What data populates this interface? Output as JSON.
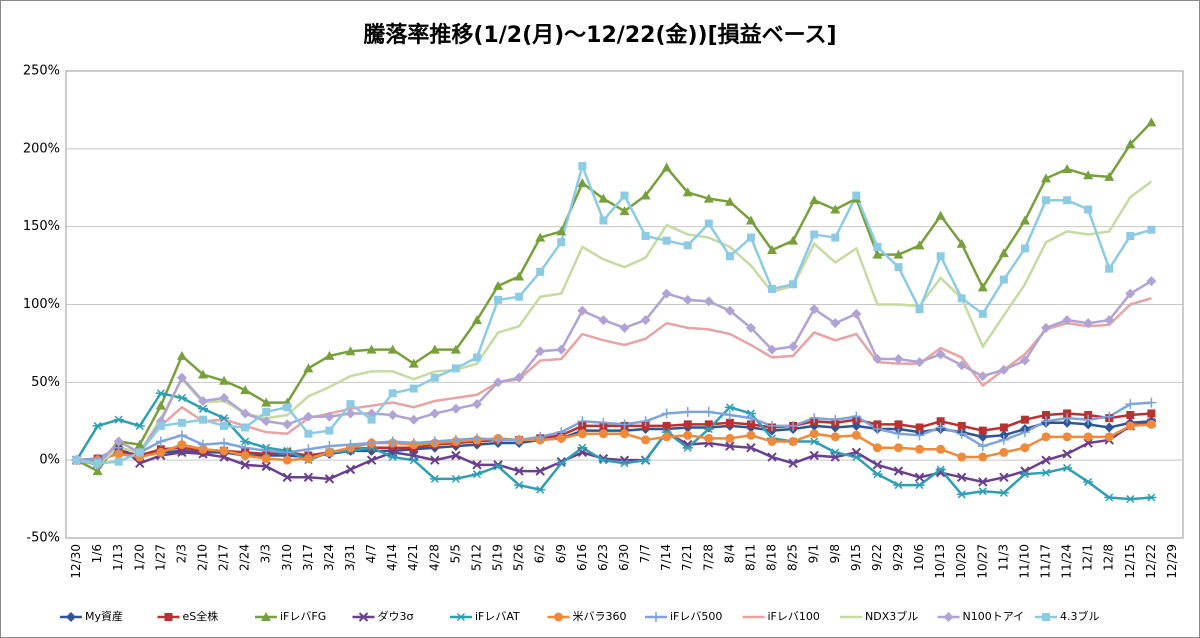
{
  "chart_data": {
    "type": "line",
    "title": "騰落率推移(1/2(月)～12/22(金))[損益ベース]",
    "categories": [
      "12/30",
      "1/6",
      "1/13",
      "1/20",
      "1/27",
      "2/3",
      "2/10",
      "2/17",
      "2/24",
      "3/3",
      "3/10",
      "3/17",
      "3/24",
      "3/31",
      "4/7",
      "4/14",
      "4/21",
      "4/28",
      "5/5",
      "5/12",
      "5/19",
      "5/26",
      "6/2",
      "6/9",
      "6/16",
      "6/23",
      "6/30",
      "7/7",
      "7/14",
      "7/21",
      "7/28",
      "8/4",
      "8/11",
      "8/18",
      "8/25",
      "9/1",
      "9/8",
      "9/15",
      "9/22",
      "9/29",
      "10/6",
      "10/13",
      "10/20",
      "10/27",
      "11/3",
      "11/10",
      "11/17",
      "11/24",
      "12/1",
      "12/8",
      "12/15",
      "12/22",
      "12/29"
    ],
    "ylim": [
      -50,
      250
    ],
    "yticks": [
      {
        "value": -50,
        "label": "-50%"
      },
      {
        "value": 0,
        "label": "0%"
      },
      {
        "value": 50,
        "label": "50%"
      },
      {
        "value": 100,
        "label": "100%"
      },
      {
        "value": 150,
        "label": "150%"
      },
      {
        "value": 200,
        "label": "200%"
      },
      {
        "value": 250,
        "label": "250%"
      }
    ],
    "grid": true,
    "legend": "bottom",
    "series": [
      {
        "name": "My資産",
        "color": "#2f5597",
        "marker": "diamond",
        "values": [
          0,
          0,
          5,
          3,
          5,
          6,
          5,
          5,
          3,
          3,
          3,
          2,
          4,
          6,
          6,
          6,
          7,
          8,
          9,
          10,
          11,
          11,
          13,
          14,
          19,
          19,
          19,
          20,
          20,
          21,
          21,
          22,
          21,
          19,
          20,
          22,
          21,
          22,
          20,
          20,
          18,
          20,
          18,
          15,
          16,
          20,
          24,
          24,
          23,
          21,
          24,
          25,
          null
        ]
      },
      {
        "name": "eS全株",
        "color": "#b83232",
        "marker": "square",
        "values": [
          0,
          1,
          6,
          3,
          7,
          8,
          6,
          6,
          5,
          4,
          5,
          3,
          5,
          7,
          8,
          8,
          8,
          10,
          11,
          12,
          13,
          13,
          14,
          16,
          22,
          22,
          22,
          22,
          22,
          23,
          23,
          24,
          23,
          21,
          22,
          25,
          24,
          26,
          23,
          23,
          21,
          25,
          22,
          19,
          21,
          26,
          29,
          30,
          29,
          27,
          29,
          30,
          null
        ]
      },
      {
        "name": "iFレバFG",
        "color": "#77a03c",
        "marker": "triangle",
        "values": [
          0,
          -7,
          12,
          10,
          35,
          67,
          55,
          51,
          45,
          37,
          37,
          59,
          67,
          70,
          71,
          71,
          62,
          71,
          71,
          90,
          112,
          118,
          143,
          147,
          178,
          168,
          160,
          170,
          188,
          172,
          168,
          166,
          154,
          135,
          141,
          167,
          161,
          168,
          132,
          132,
          138,
          157,
          139,
          111,
          133,
          154,
          181,
          187,
          183,
          182,
          203,
          217,
          null
        ]
      },
      {
        "name": "ダウ3σ",
        "color": "#6a3f8e",
        "marker": "x",
        "values": [
          0,
          -2,
          10,
          -2,
          3,
          5,
          4,
          2,
          -3,
          -4,
          -11,
          -11,
          -12,
          -6,
          0,
          5,
          3,
          0,
          3,
          -3,
          -3,
          -7,
          -7,
          -1,
          5,
          1,
          0,
          0,
          18,
          10,
          11,
          9,
          8,
          2,
          -2,
          3,
          2,
          5,
          -3,
          -7,
          -11,
          -8,
          -11,
          -14,
          -11,
          -7,
          0,
          4,
          11,
          13,
          22,
          24,
          null
        ]
      },
      {
        "name": "iFレバAT",
        "color": "#2f9fb3",
        "marker": "star",
        "values": [
          0,
          22,
          26,
          22,
          43,
          40,
          33,
          27,
          12,
          8,
          6,
          0,
          5,
          6,
          8,
          2,
          0,
          -12,
          -12,
          -9,
          -4,
          -16,
          -19,
          -2,
          8,
          0,
          -2,
          0,
          18,
          8,
          20,
          34,
          30,
          14,
          12,
          12,
          5,
          2,
          -9,
          -16,
          -16,
          -6,
          -22,
          -20,
          -21,
          -9,
          -8,
          -5,
          -14,
          -24,
          -25,
          -24,
          null
        ]
      },
      {
        "name": "米バラ360",
        "color": "#f0893a",
        "marker": "circle",
        "values": [
          0,
          0,
          4,
          2,
          5,
          10,
          7,
          6,
          3,
          1,
          0,
          1,
          5,
          8,
          11,
          11,
          10,
          11,
          12,
          13,
          14,
          13,
          13,
          14,
          17,
          17,
          17,
          13,
          15,
          16,
          14,
          14,
          16,
          12,
          12,
          17,
          15,
          16,
          8,
          8,
          7,
          7,
          2,
          2,
          5,
          8,
          15,
          15,
          15,
          15,
          22,
          23,
          null
        ]
      },
      {
        "name": "iFレバ500",
        "color": "#7fa4dc",
        "marker": "plus",
        "values": [
          0,
          1,
          8,
          5,
          12,
          16,
          10,
          11,
          8,
          6,
          5,
          7,
          9,
          10,
          11,
          12,
          11,
          12,
          13,
          14,
          13,
          13,
          15,
          18,
          25,
          24,
          23,
          25,
          30,
          31,
          31,
          29,
          27,
          22,
          22,
          27,
          26,
          28,
          20,
          17,
          16,
          21,
          17,
          9,
          13,
          18,
          25,
          27,
          26,
          28,
          36,
          37,
          null
        ]
      },
      {
        "name": "iFレバ100",
        "color": "#e6a4a4",
        "marker": "none",
        "values": [
          0,
          -2,
          8,
          5,
          22,
          34,
          25,
          26,
          22,
          18,
          17,
          27,
          30,
          33,
          35,
          37,
          34,
          38,
          40,
          42,
          50,
          52,
          64,
          65,
          81,
          77,
          74,
          78,
          88,
          85,
          84,
          81,
          74,
          66,
          67,
          82,
          77,
          81,
          63,
          62,
          62,
          72,
          66,
          48,
          58,
          68,
          84,
          88,
          86,
          87,
          100,
          104,
          null
        ]
      },
      {
        "name": "NDX3ブル",
        "color": "#c5dba2",
        "marker": "none",
        "values": [
          0,
          -3,
          8,
          5,
          27,
          52,
          37,
          38,
          30,
          27,
          29,
          41,
          47,
          54,
          57,
          57,
          52,
          57,
          58,
          62,
          82,
          86,
          105,
          107,
          137,
          129,
          124,
          130,
          151,
          145,
          143,
          137,
          125,
          108,
          112,
          139,
          127,
          136,
          100,
          100,
          99,
          117,
          104,
          73,
          93,
          113,
          140,
          147,
          145,
          147,
          169,
          179,
          null
        ]
      },
      {
        "name": "N100トアイ",
        "color": "#b1a3d3",
        "marker": "diamond",
        "values": [
          0,
          -3,
          12,
          5,
          25,
          53,
          38,
          40,
          30,
          25,
          23,
          28,
          28,
          30,
          30,
          29,
          26,
          30,
          33,
          36,
          50,
          53,
          70,
          71,
          96,
          90,
          85,
          90,
          107,
          103,
          102,
          96,
          85,
          71,
          73,
          97,
          88,
          94,
          65,
          65,
          63,
          68,
          61,
          54,
          58,
          64,
          85,
          90,
          88,
          90,
          107,
          115,
          null
        ]
      },
      {
        "name": "4.3ブル",
        "color": "#8ccbe3",
        "marker": "square",
        "values": [
          0,
          -2,
          -1,
          5,
          22,
          24,
          26,
          22,
          21,
          31,
          34,
          17,
          19,
          36,
          26,
          43,
          46,
          53,
          59,
          66,
          103,
          105,
          121,
          140,
          189,
          154,
          170,
          144,
          141,
          138,
          152,
          131,
          143,
          110,
          113,
          145,
          143,
          170,
          137,
          124,
          97,
          131,
          104,
          94,
          116,
          136,
          167,
          167,
          161,
          123,
          144,
          148,
          null
        ]
      }
    ]
  }
}
